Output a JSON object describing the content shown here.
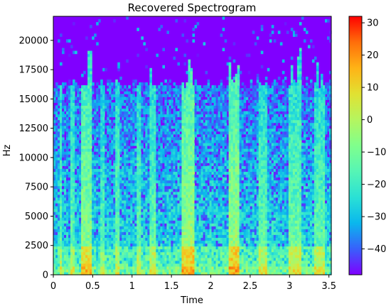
{
  "chart_data": {
    "type": "heatmap",
    "title": "Recovered Spectrogram",
    "xlabel": "Time",
    "ylabel": "Hz",
    "xlim": [
      0,
      3.53
    ],
    "ylim": [
      0,
      22050
    ],
    "xticks": [
      0,
      0.5,
      1,
      1.5,
      2,
      2.5,
      3,
      3.5
    ],
    "xtick_labels": [
      "0",
      "0.5",
      "1",
      "1.5",
      "2",
      "2.5",
      "3",
      "3.5"
    ],
    "yticks": [
      0,
      2500,
      5000,
      7500,
      10000,
      12500,
      15000,
      17500,
      20000
    ],
    "ytick_labels": [
      "0",
      "2500",
      "5000",
      "7500",
      "10000",
      "12500",
      "15000",
      "17500",
      "20000"
    ],
    "colorbar": {
      "colormap": "rainbow",
      "vmin": -48,
      "vmax": 32,
      "ticks": [
        30,
        20,
        10,
        0,
        -10,
        -20,
        -30,
        -40
      ],
      "tick_labels": [
        "30",
        "20",
        "10",
        "0",
        "−10",
        "−20",
        "−30",
        "−40"
      ]
    },
    "colormap_stops": [
      "#8000ff",
      "#3860fb",
      "#0ab7ed",
      "#2ae1d5",
      "#56f5b5",
      "#80ff8c",
      "#b5f55f",
      "#e1e132",
      "#ffb316",
      "#ff6e0a",
      "#ff0000"
    ],
    "cutoff_hz": 16000,
    "floor_db": -48,
    "active_bands": [
      {
        "start": 0.08,
        "end": 0.12,
        "intensity": 0.55
      },
      {
        "start": 0.22,
        "end": 0.28,
        "intensity": 0.6
      },
      {
        "start": 0.36,
        "end": 0.5,
        "intensity": 0.85
      },
      {
        "start": 0.6,
        "end": 0.66,
        "intensity": 0.55
      },
      {
        "start": 0.78,
        "end": 0.84,
        "intensity": 0.6
      },
      {
        "start": 1.05,
        "end": 1.12,
        "intensity": 0.6
      },
      {
        "start": 1.22,
        "end": 1.3,
        "intensity": 0.65
      },
      {
        "start": 1.62,
        "end": 1.8,
        "intensity": 0.95
      },
      {
        "start": 2.22,
        "end": 2.35,
        "intensity": 0.95
      },
      {
        "start": 2.6,
        "end": 2.72,
        "intensity": 0.6
      },
      {
        "start": 3.0,
        "end": 3.15,
        "intensity": 0.7
      },
      {
        "start": 3.3,
        "end": 3.45,
        "intensity": 0.65
      }
    ]
  }
}
